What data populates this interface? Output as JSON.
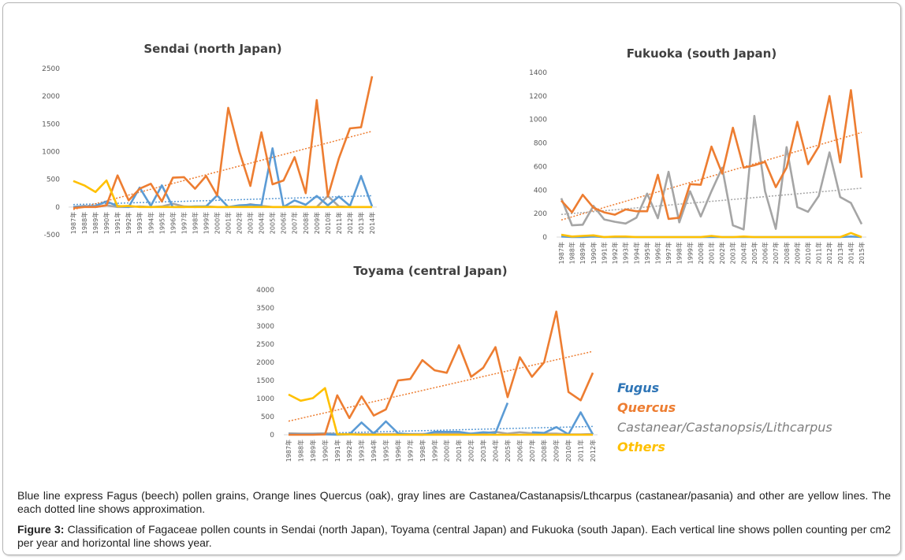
{
  "legend": [
    {
      "label": "Fugus",
      "color": "#4a8fd0"
    },
    {
      "label": "Quercus",
      "color": "#ed7d31"
    },
    {
      "label": "Castanear/Castanopsis/Lithcarpus",
      "color": "#7f7f7f"
    },
    {
      "label": "Others",
      "color": "#ffc000"
    }
  ],
  "series_colors": {
    "fagus": "#5b9bd5",
    "quercus": "#ed7d31",
    "castanea": "#a5a5a5",
    "others": "#ffc000"
  },
  "caption": {
    "note": "Blue line express Fagus (beech) pollen grains, Orange lines Quercus (oak), gray lines are Castanea/Castanapsis/Lthcarpus (castanear/pasania) and other are yellow lines. The each dotted line shows approximation.",
    "figure_label": "Figure 3:",
    "figure_text": " Classification of Fagaceae pollen counts in Sendai (north Japan), Toyama (central Japan) and Fukuoka (south Japan). Each vertical line shows pollen counting per cm2 per year and horizontal line shows year."
  },
  "chart_data": [
    {
      "id": "sendai",
      "type": "line",
      "title": "Sendai  (north Japan)",
      "xlabel": "",
      "ylabel": "",
      "ylim": [
        -500,
        2500
      ],
      "yticks": [
        "-500",
        "0",
        "500",
        "1000",
        "1500",
        "2000",
        "2500"
      ],
      "ytick_values": [
        -500,
        0,
        500,
        1000,
        1500,
        2000,
        2500
      ],
      "grid": false,
      "trendlines": [
        "fagus",
        "quercus"
      ],
      "categories": [
        "1987年",
        "1988年",
        "1989年",
        "1990年",
        "1991年",
        "1992年",
        "1993年",
        "1994年",
        "1995年",
        "1996年",
        "1997年",
        "1998年",
        "1999年",
        "2000年",
        "2001年",
        "2002年",
        "2003年",
        "2004年",
        "2005年",
        "2006年",
        "2007年",
        "2008年",
        "2009年",
        "2010年",
        "2011年",
        "2012年",
        "2013年",
        "2014年"
      ],
      "series": [
        {
          "name": "Fugus",
          "key": "fagus",
          "values": [
            0,
            10,
            20,
            100,
            20,
            0,
            350,
            20,
            390,
            0,
            0,
            10,
            10,
            210,
            0,
            30,
            40,
            30,
            1060,
            0,
            120,
            40,
            200,
            30,
            190,
            20,
            560,
            10
          ]
        },
        {
          "name": "Quercus",
          "key": "quercus",
          "values": [
            -20,
            0,
            0,
            30,
            570,
            120,
            330,
            420,
            100,
            530,
            540,
            330,
            560,
            210,
            1790,
            1000,
            380,
            1350,
            410,
            480,
            900,
            250,
            1930,
            190,
            880,
            1420,
            1440,
            2360
          ]
        },
        {
          "name": "Castanear/Castanopsis/Lithcarpus",
          "key": "castanea",
          "values": [
            0,
            20,
            0,
            30,
            0,
            0,
            10,
            0,
            10,
            60,
            10,
            0,
            10,
            0,
            0,
            10,
            50,
            20,
            0,
            0,
            10,
            0,
            0,
            200,
            10,
            0,
            0,
            0
          ]
        },
        {
          "name": "Others",
          "key": "others",
          "values": [
            470,
            390,
            270,
            480,
            10,
            20,
            0,
            0,
            0,
            0,
            0,
            0,
            0,
            0,
            0,
            0,
            0,
            0,
            0,
            0,
            0,
            0,
            0,
            0,
            0,
            0,
            0,
            0
          ]
        }
      ]
    },
    {
      "id": "fukuoka",
      "type": "line",
      "title": "Fukuoka (south Japan)",
      "xlabel": "",
      "ylabel": "",
      "ylim": [
        0,
        1400
      ],
      "yticks": [
        "0",
        "200",
        "400",
        "600",
        "800",
        "1000",
        "1200",
        "1400"
      ],
      "ytick_values": [
        0,
        200,
        400,
        600,
        800,
        1000,
        1200,
        1400
      ],
      "grid": false,
      "trendlines": [
        "quercus",
        "castanea"
      ],
      "categories": [
        "1987年",
        "1988年",
        "1989年",
        "1990年",
        "1991年",
        "1992年",
        "1993年",
        "1994年",
        "1995年",
        "1996年",
        "1997年",
        "1998年",
        "1999年",
        "2000年",
        "2001年",
        "2002年",
        "2003年",
        "2004年",
        "2005年",
        "2006年",
        "2007年",
        "2008年",
        "2009年",
        "2010年",
        "2011年",
        "2012年",
        "2013年",
        "2014年",
        "2015年"
      ],
      "series": [
        {
          "name": "Fugus",
          "key": "fagus",
          "values": [
            5,
            0,
            0,
            5,
            0,
            0,
            0,
            0,
            0,
            0,
            0,
            0,
            0,
            0,
            0,
            0,
            0,
            0,
            0,
            0,
            0,
            0,
            0,
            0,
            0,
            0,
            0,
            5,
            0
          ]
        },
        {
          "name": "Quercus",
          "key": "quercus",
          "values": [
            310,
            210,
            360,
            250,
            210,
            190,
            235,
            220,
            220,
            530,
            155,
            165,
            450,
            445,
            770,
            540,
            930,
            590,
            610,
            640,
            425,
            590,
            980,
            620,
            770,
            1200,
            635,
            1250,
            505
          ]
        },
        {
          "name": "Castanear/Castanopsis/Lithcarpus",
          "key": "castanea",
          "values": [
            330,
            100,
            105,
            265,
            150,
            130,
            115,
            165,
            370,
            160,
            555,
            125,
            390,
            175,
            390,
            590,
            100,
            65,
            1030,
            390,
            70,
            765,
            255,
            215,
            350,
            720,
            340,
            290,
            110
          ]
        },
        {
          "name": "Others",
          "key": "others",
          "values": [
            20,
            5,
            10,
            15,
            0,
            5,
            5,
            0,
            0,
            0,
            0,
            0,
            0,
            0,
            10,
            0,
            0,
            5,
            0,
            0,
            0,
            0,
            0,
            0,
            0,
            0,
            0,
            35,
            0
          ]
        }
      ]
    },
    {
      "id": "toyama",
      "type": "line",
      "title": "Toyama (central Japan)",
      "xlabel": "",
      "ylabel": "",
      "ylim": [
        0,
        4000
      ],
      "yticks": [
        "0",
        "500",
        "1000",
        "1500",
        "2000",
        "2500",
        "3000",
        "3500",
        "4000"
      ],
      "ytick_values": [
        0,
        500,
        1000,
        1500,
        2000,
        2500,
        3000,
        3500,
        4000
      ],
      "grid": false,
      "trendlines": [
        "fagus",
        "quercus"
      ],
      "categories": [
        "1987年",
        "1988年",
        "1989年",
        "1990年",
        "1991年",
        "1992年",
        "1993年",
        "1994年",
        "1995年",
        "1996年",
        "1997年",
        "1998年",
        "1999年",
        "2000年",
        "2001年",
        "2002年",
        "2003年",
        "2004年",
        "2005年",
        "2006年",
        "2007年",
        "2008年",
        "2009年",
        "2010年",
        "2011年",
        "2012年"
      ],
      "series": [
        {
          "name": "Fugus",
          "key": "fagus",
          "values": [
            10,
            10,
            10,
            10,
            0,
            10,
            340,
            30,
            370,
            40,
            10,
            0,
            80,
            80,
            80,
            30,
            70,
            50,
            880,
            null,
            70,
            50,
            210,
            10,
            620,
            10
          ]
        },
        {
          "name": "Quercus",
          "key": "quercus",
          "values": [
            0,
            0,
            0,
            10,
            1090,
            460,
            1060,
            530,
            700,
            1500,
            1540,
            2060,
            1780,
            1710,
            2470,
            1600,
            1850,
            2420,
            1040,
            2140,
            1600,
            2000,
            3400,
            1180,
            950,
            1710
          ]
        },
        {
          "name": "Castanear/Castanopsis/Lithcarpus",
          "key": "castanea",
          "values": [
            40,
            30,
            30,
            40,
            20,
            20,
            20,
            20,
            20,
            20,
            20,
            20,
            30,
            30,
            40,
            30,
            40,
            80,
            30,
            70,
            40,
            30,
            30,
            10,
            10,
            20
          ]
        },
        {
          "name": "Others",
          "key": "others",
          "values": [
            1110,
            940,
            1010,
            1290,
            10,
            10,
            0,
            0,
            0,
            0,
            0,
            0,
            0,
            0,
            0,
            0,
            0,
            0,
            0,
            0,
            0,
            0,
            0,
            0,
            0,
            0
          ]
        }
      ]
    }
  ]
}
